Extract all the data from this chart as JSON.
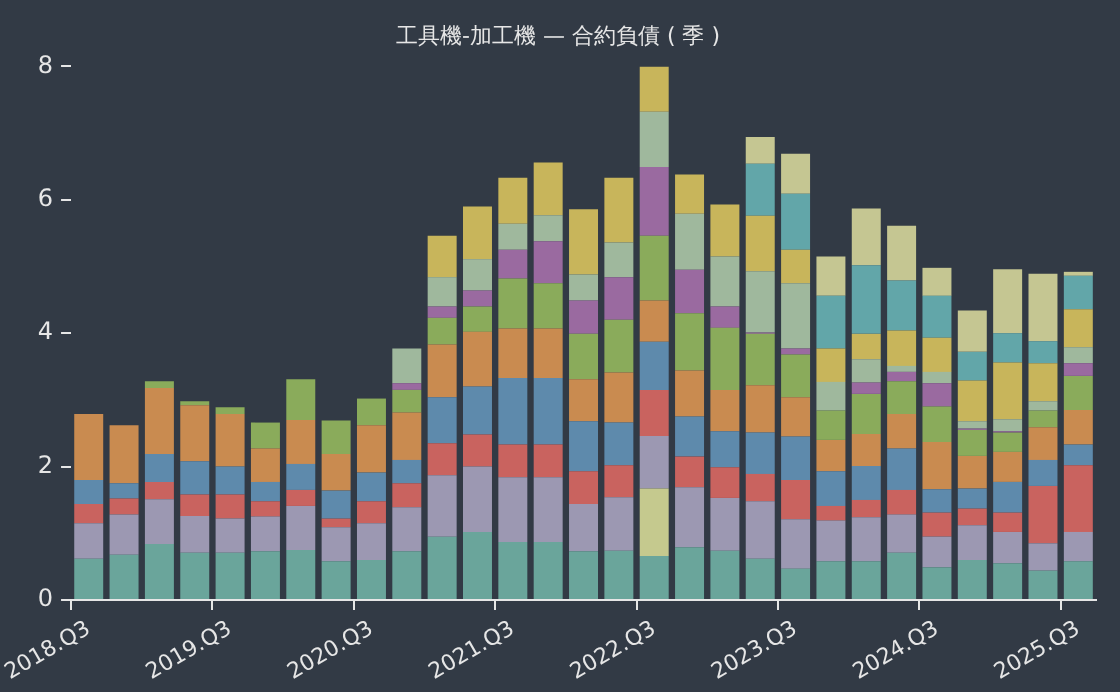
{
  "chart_data": {
    "type": "bar",
    "title": "工具機-加工機 — 合約負債 ( 季 )",
    "stacked": true,
    "grid": false,
    "legend": false,
    "categories": [
      "2018.Q3",
      null,
      null,
      null,
      "2019.Q3",
      null,
      null,
      null,
      "2020.Q3",
      null,
      null,
      null,
      "2021.Q3",
      null,
      null,
      null,
      "2022.Q3",
      null,
      null,
      null,
      "2023.Q3",
      null,
      null,
      null,
      "2024.Q3",
      null,
      null,
      null,
      "2025.Q3"
    ],
    "ylim": [
      0,
      8
    ],
    "yticks": [
      0,
      2,
      4,
      6,
      8
    ],
    "series": [
      {
        "color": "#6aa59b",
        "values": [
          0.62,
          0.68,
          0.84,
          0.71,
          0.71,
          0.73,
          0.75,
          0.58,
          0.6,
          0.73,
          0.95,
          1.02,
          0.87,
          0.87,
          0.73,
          0.74,
          0.66,
          0.79,
          0.74,
          0.62,
          0.47,
          0.58,
          0.58,
          0.71,
          0.49,
          0.6,
          0.55,
          0.44,
          0.58
        ]
      },
      {
        "color": "#c5c98e",
        "values": [
          null,
          null,
          null,
          null,
          null,
          null,
          null,
          null,
          null,
          null,
          null,
          null,
          null,
          null,
          null,
          null,
          1.01,
          null,
          null,
          null,
          null,
          null,
          null,
          null,
          null,
          null,
          null,
          null,
          null
        ]
      },
      {
        "color": "#9c98b2",
        "values": [
          0.53,
          0.6,
          0.67,
          0.55,
          0.51,
          0.52,
          0.66,
          0.51,
          0.55,
          0.66,
          0.92,
          0.98,
          0.97,
          0.97,
          0.71,
          0.8,
          0.79,
          0.9,
          0.79,
          0.86,
          0.74,
          0.61,
          0.66,
          0.57,
          0.46,
          0.52,
          0.47,
          0.41,
          0.44
        ]
      },
      {
        "color": "#c9635f",
        "values": [
          0.29,
          0.24,
          0.26,
          0.32,
          0.36,
          0.23,
          0.24,
          0.13,
          0.33,
          0.36,
          0.48,
          0.48,
          0.49,
          0.49,
          0.49,
          0.48,
          0.69,
          0.46,
          0.46,
          0.41,
          0.59,
          0.22,
          0.26,
          0.37,
          0.36,
          0.25,
          0.29,
          0.86,
          1.0
        ]
      },
      {
        "color": "#5e8aac",
        "values": [
          0.36,
          0.23,
          0.42,
          0.5,
          0.42,
          0.29,
          0.39,
          0.42,
          0.43,
          0.35,
          0.69,
          0.72,
          1.0,
          1.0,
          0.75,
          0.64,
          0.72,
          0.6,
          0.54,
          0.62,
          0.65,
          0.52,
          0.51,
          0.62,
          0.35,
          0.3,
          0.46,
          0.39,
          0.31
        ]
      },
      {
        "color": "#c98b50",
        "values": [
          0.99,
          0.87,
          0.99,
          0.84,
          0.79,
          0.5,
          0.66,
          0.55,
          0.71,
          0.71,
          0.79,
          0.82,
          0.74,
          0.74,
          0.63,
          0.75,
          0.62,
          0.69,
          0.62,
          0.71,
          0.59,
          0.47,
          0.48,
          0.52,
          0.71,
          0.49,
          0.45,
          0.49,
          0.52
        ]
      },
      {
        "color": "#8aab5b",
        "values": [
          null,
          null,
          0.1,
          0.06,
          0.1,
          0.39,
          0.61,
          0.5,
          0.4,
          0.34,
          0.4,
          0.38,
          0.75,
          0.68,
          0.68,
          0.79,
          0.97,
          0.86,
          0.93,
          0.77,
          0.64,
          0.44,
          0.6,
          0.49,
          0.53,
          0.39,
          0.29,
          0.25,
          0.51
        ]
      },
      {
        "color": "#9a6aa0",
        "values": [
          null,
          null,
          null,
          null,
          null,
          null,
          null,
          null,
          null,
          0.1,
          0.17,
          0.24,
          0.43,
          0.63,
          0.5,
          0.64,
          1.03,
          0.65,
          0.32,
          0.02,
          0.09,
          null,
          0.17,
          0.14,
          0.35,
          0.02,
          0.02,
          null,
          0.19
        ]
      },
      {
        "color": "#9fb89d",
        "values": [
          null,
          null,
          null,
          null,
          null,
          null,
          null,
          null,
          null,
          0.52,
          0.44,
          0.47,
          0.39,
          0.39,
          0.39,
          0.52,
          0.83,
          0.84,
          0.75,
          0.92,
          0.98,
          0.43,
          0.35,
          0.09,
          0.17,
          0.11,
          0.18,
          0.14,
          0.24
        ]
      },
      {
        "color": "#c8b55b",
        "values": [
          null,
          null,
          null,
          null,
          null,
          null,
          null,
          null,
          null,
          null,
          0.62,
          0.79,
          0.69,
          0.79,
          0.98,
          0.97,
          0.68,
          0.59,
          0.78,
          0.83,
          0.5,
          0.5,
          0.38,
          0.53,
          0.51,
          0.61,
          0.85,
          0.57,
          0.57
        ]
      },
      {
        "color": "#62a6a9",
        "values": [
          null,
          null,
          null,
          null,
          null,
          null,
          null,
          null,
          null,
          null,
          null,
          null,
          null,
          null,
          null,
          null,
          null,
          null,
          null,
          0.78,
          0.84,
          0.79,
          1.03,
          0.75,
          0.63,
          0.43,
          0.44,
          0.33,
          0.5
        ]
      },
      {
        "color": "#c5c692",
        "values": [
          null,
          null,
          null,
          null,
          null,
          null,
          null,
          null,
          null,
          null,
          null,
          null,
          null,
          null,
          null,
          null,
          null,
          null,
          null,
          0.4,
          0.6,
          0.59,
          0.85,
          0.82,
          0.42,
          0.62,
          0.96,
          1.01,
          0.06
        ]
      }
    ]
  }
}
